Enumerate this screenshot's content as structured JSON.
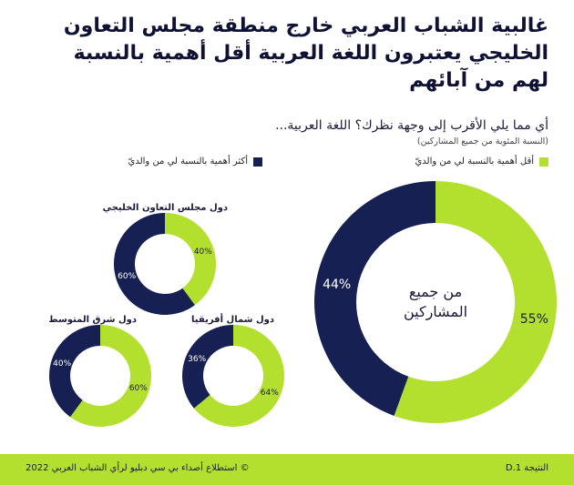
{
  "title_lines": [
    "غالبية الشباب العربي خارج منطقة مجلس التعاون",
    "الخليجي يعتبرون اللغة العربية أقل أهمية بالنسبة",
    "لهم من آبائهم"
  ],
  "footer": {
    "copyright": "© استطلاع أصداء بي سي دبليو لرأي الشباب العربي 2022",
    "reference": "النتيجة D.1"
  },
  "colors": {
    "green": "#b3e02f",
    "navy": "#162052",
    "footer_bg": "#b3e02f"
  },
  "chart_data": {
    "type": "pie",
    "question": "أي مما يلي الأقرب إلى وجهة نظرك؟ اللغة العربية...",
    "subnote": "(النسبة المئوية من جميع المشاركين)",
    "legend": [
      {
        "label": "أقل أهمية بالنسبة لي من والديّ",
        "color": "#b3e02f"
      },
      {
        "label": "أكثر أهمية بالنسبة لي من والديّ",
        "color": "#162052"
      }
    ],
    "charts": [
      {
        "id": "all",
        "title": "من جميع المشاركين",
        "less": 55,
        "more": 44
      },
      {
        "id": "gcc",
        "title": "دول مجلس التعاون الخليجي",
        "less": 40,
        "more": 60
      },
      {
        "id": "levant",
        "title": "دول شرق المتوسط",
        "less": 60,
        "more": 40
      },
      {
        "id": "nafrica",
        "title": "دول شمال أفريقيا",
        "less": 64,
        "more": 36
      }
    ]
  }
}
